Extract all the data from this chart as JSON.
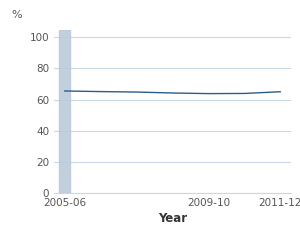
{
  "x_values": [
    0,
    1,
    2,
    3,
    4,
    5,
    6
  ],
  "y_values": [
    65.5,
    65.1,
    64.8,
    64.2,
    63.8,
    63.9,
    65.0
  ],
  "x_tick_positions": [
    0,
    4,
    6
  ],
  "x_tick_labels": [
    "2005-06",
    "2009-10",
    "2011-12"
  ],
  "y_tick_positions": [
    0,
    20,
    40,
    60,
    80,
    100
  ],
  "y_tick_labels": [
    "0",
    "20",
    "40",
    "60",
    "80",
    "100"
  ],
  "pct_label": "%",
  "xlabel": "Year",
  "ylim": [
    0,
    105
  ],
  "xlim": [
    -0.3,
    6.3
  ],
  "line_color": "#2B5C8A",
  "bar_color": "#b8c8d8",
  "grid_color": "#c8d8e8",
  "bg_color": "#ffffff",
  "bar_x": 0,
  "bar_width": 0.15
}
